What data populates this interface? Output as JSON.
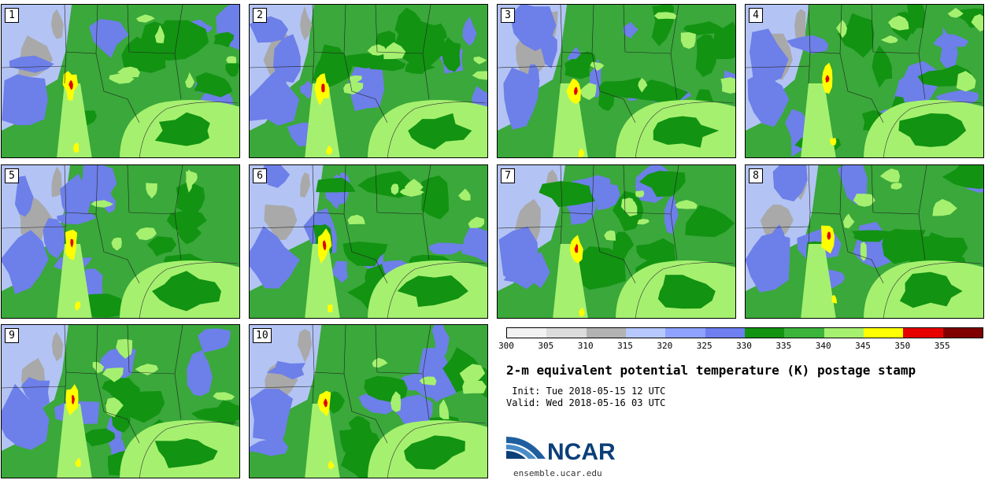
{
  "title": "2-m equivalent potential temperature (K) postage stamp",
  "init": {
    "label": "Init:",
    "value": "Tue 2018-05-15 12 UTC"
  },
  "valid": {
    "label": "Valid:",
    "value": "Wed 2018-05-16 03 UTC"
  },
  "logo": {
    "text": "NCAR",
    "url": "ensemble.ucar.edu"
  },
  "colorbar": {
    "ticks": [
      "300",
      "305",
      "310",
      "315",
      "320",
      "325",
      "330",
      "335",
      "340",
      "345",
      "350",
      "355"
    ],
    "colors": [
      "#f2f2f2",
      "#dcdcdc",
      "#b2b2b2",
      "#b7c8ff",
      "#8fa2ff",
      "#6e7ff0",
      "#129312",
      "#3cb43c",
      "#a6f070",
      "#ffff00",
      "#e60000",
      "#800000"
    ]
  },
  "members": [
    "1",
    "2",
    "3",
    "4",
    "5",
    "6",
    "7",
    "8",
    "9",
    "10"
  ],
  "palette": {
    "cold": "#b3c4f4",
    "gray": "#a9a9a9",
    "blue": "#6d7fe8",
    "dkgreen": "#129312",
    "green": "#3aa83a",
    "ltgreen": "#a6f070",
    "yellow": "#ffff00",
    "red": "#e00000",
    "darkred": "#800000"
  }
}
